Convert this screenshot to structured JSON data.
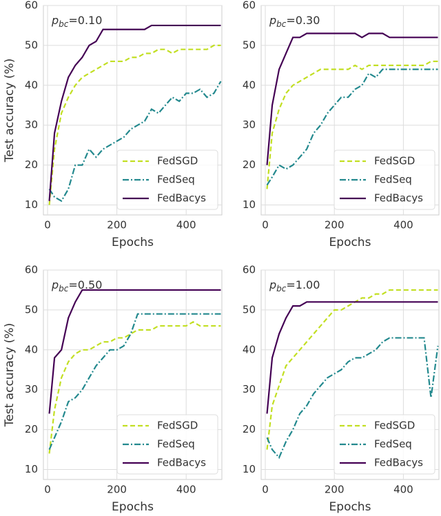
{
  "chart_data": [
    {
      "type": "line",
      "annotation_symbol": "p",
      "annotation_subscript": "bc",
      "annotation_value": "=0.10",
      "xlabel": "Epochs",
      "ylabel": "Test accuracy (%)",
      "x": [
        5,
        20,
        40,
        60,
        80,
        100,
        120,
        140,
        160,
        180,
        200,
        220,
        240,
        260,
        280,
        300,
        320,
        340,
        360,
        380,
        400,
        420,
        440,
        460,
        480,
        500
      ],
      "xlim": [
        -12,
        503
      ],
      "ylim": [
        7.5,
        60
      ],
      "xticks": [
        0,
        200,
        400
      ],
      "yticks": [
        10,
        20,
        30,
        40,
        50,
        60
      ],
      "grid": true,
      "legend": "lower right",
      "series": [
        {
          "name": "FedSGD",
          "color": "#c2df23",
          "style": "dashed",
          "values": [
            10,
            24,
            33,
            37,
            40,
            42,
            43,
            44,
            45,
            46,
            46,
            46,
            47,
            47,
            48,
            48,
            49,
            49,
            48,
            49,
            49,
            49,
            49,
            49,
            50,
            50
          ]
        },
        {
          "name": "FedSeq",
          "color": "#23898e",
          "style": "dashdot",
          "values": [
            14,
            12,
            11,
            14,
            20,
            20,
            24,
            22,
            24,
            25,
            26,
            27,
            29,
            30,
            31,
            34,
            33,
            35,
            37,
            36,
            38,
            38,
            39,
            37,
            38,
            41
          ]
        },
        {
          "name": "FedBacys",
          "color": "#440154",
          "style": "solid",
          "values": [
            11,
            28,
            36,
            42,
            45,
            47,
            50,
            51,
            54,
            54,
            54,
            54,
            54,
            54,
            54,
            55,
            55,
            55,
            55,
            55,
            55,
            55,
            55,
            55,
            55,
            55
          ]
        }
      ]
    },
    {
      "type": "line",
      "annotation_symbol": "p",
      "annotation_subscript": "bc",
      "annotation_value": "=0.30",
      "xlabel": "Epochs",
      "x": [
        5,
        20,
        40,
        60,
        80,
        100,
        120,
        140,
        160,
        180,
        200,
        220,
        240,
        260,
        280,
        300,
        320,
        340,
        360,
        380,
        400,
        420,
        440,
        460,
        480,
        500
      ],
      "xlim": [
        -12,
        503
      ],
      "ylim": [
        7.5,
        60
      ],
      "xticks": [
        0,
        200,
        400
      ],
      "yticks": [
        10,
        20,
        30,
        40,
        50,
        60
      ],
      "grid": true,
      "legend": "lower right",
      "series": [
        {
          "name": "FedSGD",
          "color": "#c2df23",
          "style": "dashed",
          "values": [
            14,
            28,
            34,
            38,
            40,
            41,
            42,
            43,
            44,
            44,
            44,
            44,
            44,
            45,
            44,
            45,
            45,
            45,
            45,
            45,
            45,
            45,
            45,
            45,
            46,
            46
          ]
        },
        {
          "name": "FedSeq",
          "color": "#23898e",
          "style": "dashdot",
          "values": [
            15,
            17,
            20,
            19,
            20,
            22,
            24,
            28,
            30,
            33,
            35,
            37,
            37,
            39,
            40,
            43,
            42,
            44,
            44,
            44,
            44,
            44,
            44,
            44,
            44,
            44
          ]
        },
        {
          "name": "FedBacys",
          "color": "#440154",
          "style": "solid",
          "values": [
            20,
            35,
            44,
            48,
            52,
            52,
            53,
            53,
            53,
            53,
            53,
            53,
            53,
            53,
            52,
            53,
            53,
            53,
            52,
            52,
            52,
            52,
            52,
            52,
            52,
            52
          ]
        }
      ]
    },
    {
      "type": "line",
      "annotation_symbol": "p",
      "annotation_subscript": "bc",
      "annotation_value": "=0.50",
      "xlabel": "Epochs",
      "ylabel": "Test accuracy (%)",
      "x": [
        5,
        20,
        40,
        60,
        80,
        100,
        120,
        140,
        160,
        180,
        200,
        220,
        240,
        260,
        280,
        300,
        320,
        340,
        360,
        380,
        400,
        420,
        440,
        460,
        480,
        500
      ],
      "xlim": [
        -12,
        503
      ],
      "ylim": [
        7.5,
        60
      ],
      "xticks": [
        0,
        200,
        400
      ],
      "yticks": [
        10,
        20,
        30,
        40,
        50,
        60
      ],
      "grid": true,
      "legend": "lower right",
      "series": [
        {
          "name": "FedSGD",
          "color": "#c2df23",
          "style": "dashed",
          "values": [
            14,
            25,
            33,
            37,
            39,
            40,
            40,
            41,
            42,
            42,
            43,
            43,
            44,
            45,
            45,
            45,
            46,
            46,
            46,
            46,
            46,
            47,
            46,
            46,
            46,
            46
          ]
        },
        {
          "name": "FedSeq",
          "color": "#23898e",
          "style": "dashdot",
          "values": [
            15,
            18,
            22,
            27,
            28,
            30,
            33,
            36,
            38,
            40,
            40,
            41,
            44,
            49,
            49,
            49,
            49,
            49,
            49,
            49,
            49,
            49,
            49,
            49,
            49,
            49
          ]
        },
        {
          "name": "FedBacys",
          "color": "#440154",
          "style": "solid",
          "values": [
            24,
            38,
            40,
            48,
            52,
            55,
            55,
            55,
            55,
            55,
            55,
            55,
            55,
            55,
            55,
            55,
            55,
            55,
            55,
            55,
            55,
            55,
            55,
            55,
            55,
            55
          ]
        }
      ]
    },
    {
      "type": "line",
      "annotation_symbol": "p",
      "annotation_subscript": "bc",
      "annotation_value": "=1.00",
      "xlabel": "Epochs",
      "x": [
        5,
        20,
        40,
        60,
        80,
        100,
        120,
        140,
        160,
        180,
        200,
        220,
        240,
        260,
        280,
        300,
        320,
        340,
        360,
        380,
        400,
        420,
        440,
        460,
        480,
        500
      ],
      "xlim": [
        -12,
        503
      ],
      "ylim": [
        7.5,
        60
      ],
      "xticks": [
        0,
        200,
        400
      ],
      "yticks": [
        10,
        20,
        30,
        40,
        50,
        60
      ],
      "grid": true,
      "legend": "lower right",
      "series": [
        {
          "name": "FedSGD",
          "color": "#c2df23",
          "style": "dashed",
          "values": [
            15,
            26,
            31,
            36,
            38,
            40,
            42,
            44,
            46,
            48,
            50,
            50,
            51,
            52,
            53,
            53,
            54,
            54,
            55,
            55,
            55,
            55,
            55,
            55,
            55,
            55
          ]
        },
        {
          "name": "FedSeq",
          "color": "#23898e",
          "style": "dashdot",
          "values": [
            18,
            15,
            13,
            17,
            20,
            24,
            26,
            29,
            31,
            33,
            34,
            35,
            37,
            38,
            38,
            39,
            40,
            42,
            43,
            43,
            43,
            43,
            43,
            43,
            28,
            41
          ]
        },
        {
          "name": "FedBacys",
          "color": "#440154",
          "style": "solid",
          "values": [
            24,
            38,
            44,
            48,
            51,
            51,
            52,
            52,
            52,
            52,
            52,
            52,
            52,
            52,
            52,
            52,
            52,
            52,
            52,
            52,
            52,
            52,
            52,
            52,
            52,
            52
          ]
        }
      ]
    }
  ]
}
